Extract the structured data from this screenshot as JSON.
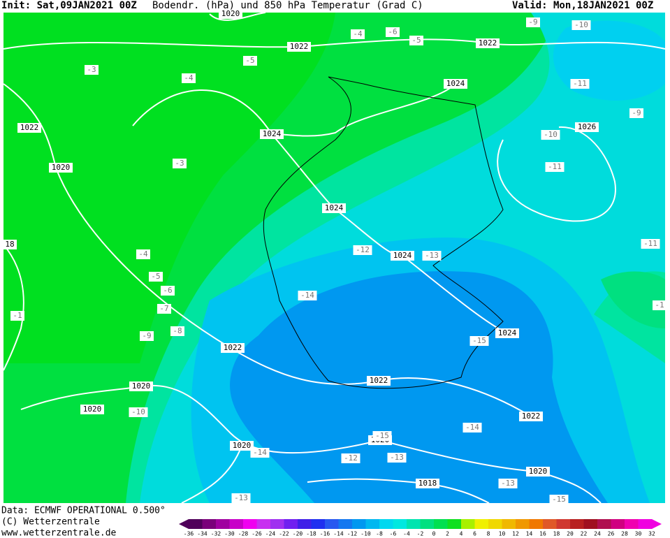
{
  "header": {
    "init": "Init: Sat,09JAN2021 00Z",
    "title": "Bodendr. (hPa) und 850 hPa Temperatur (Grad C)",
    "valid": "Valid: Mon,18JAN2021 00Z"
  },
  "isobar_labels": [
    1020,
    1022,
    1022,
    1024,
    1022,
    1024,
    1026,
    1020,
    1024,
    1024,
    18,
    1024,
    1022,
    1022,
    1020,
    1020,
    1022,
    1020,
    1020,
    1020,
    1018
  ],
  "temperature_labels": [
    -5,
    -6,
    -4,
    -5,
    -9,
    -10,
    -3,
    -4,
    -11,
    -9,
    -10,
    -3,
    -11,
    -11,
    -12,
    -13,
    -4,
    -5,
    -6,
    -7,
    -14,
    -1,
    -1,
    -8,
    -9,
    -15,
    -10,
    -14,
    -14,
    -12,
    -13,
    -15,
    -13,
    -15,
    -13
  ],
  "footer": {
    "data": "Data: ECMWF OPERATIONAL 0.500°",
    "copyright": "(C) Wetterzentrale",
    "url": "www.wetterzentrale.de"
  },
  "legend": {
    "ticks": [
      -36,
      -34,
      -32,
      -30,
      -28,
      -26,
      -24,
      -22,
      -20,
      -18,
      -16,
      -14,
      -12,
      -10,
      -8,
      -6,
      -4,
      -2,
      0,
      2,
      4,
      6,
      8,
      10,
      12,
      14,
      16,
      18,
      20,
      22,
      24,
      26,
      28,
      30,
      32
    ],
    "colors": [
      "#50005a",
      "#7a007a",
      "#a000a0",
      "#c800c8",
      "#f000f0",
      "#c830f0",
      "#a030f0",
      "#7020f0",
      "#4020e8",
      "#2030f0",
      "#2858f0",
      "#1478f0",
      "#0098f0",
      "#00b8f0",
      "#00d8f0",
      "#00e8e0",
      "#00e4b0",
      "#00e080",
      "#00e050",
      "#10e020",
      "#a8f000",
      "#f0f000",
      "#f0d800",
      "#f0b800",
      "#f09800",
      "#f07800",
      "#e05828",
      "#d03830",
      "#b82020",
      "#a01020",
      "#b01050",
      "#d00080",
      "#f000b0",
      "#f000e0"
    ]
  }
}
